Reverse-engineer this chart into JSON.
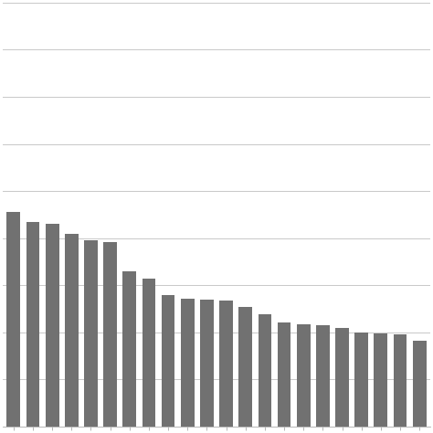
{
  "values": [
    4.55,
    4.35,
    4.3,
    4.1,
    3.95,
    3.92,
    3.3,
    3.15,
    2.8,
    2.72,
    2.7,
    2.68,
    2.55,
    2.38,
    2.22,
    2.18,
    2.15,
    2.1,
    2.0,
    1.98,
    1.96,
    1.82
  ],
  "bar_color": "#717171",
  "background_color": "#ffffff",
  "ylim": [
    0,
    9
  ],
  "ytick_interval": 1,
  "grid_color": "#c8c8c8",
  "grid_linewidth": 0.7,
  "bar_width": 0.7,
  "edge_color": "none",
  "figure_size": [
    4.74,
    4.74
  ],
  "dpi": 100
}
